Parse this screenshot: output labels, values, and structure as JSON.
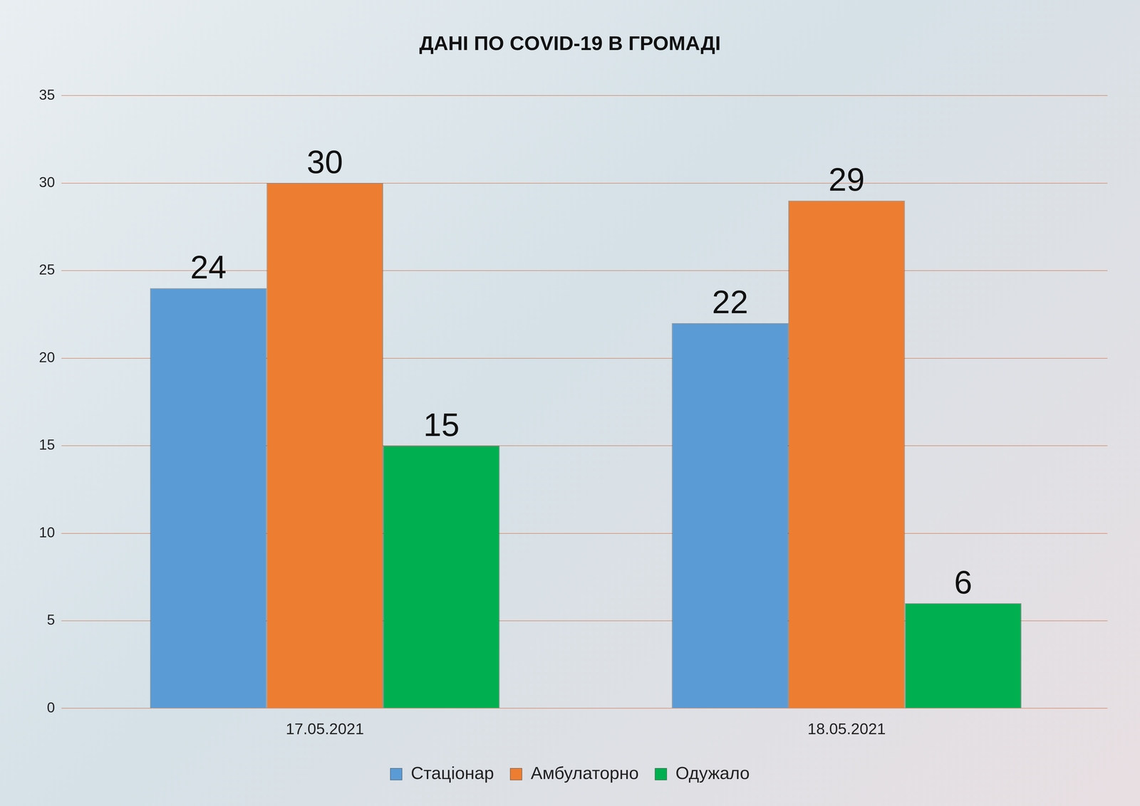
{
  "chart_data": {
    "type": "bar",
    "title": "ДАНІ ПО COVID-19 В ГРОМАДІ",
    "categories": [
      "17.05.2021",
      "18.05.2021"
    ],
    "series": [
      {
        "name": "Стаціонар",
        "color": "#5b9bd5",
        "values": [
          24,
          22
        ]
      },
      {
        "name": "Амбулаторно",
        "color": "#ed7d31",
        "values": [
          30,
          29
        ]
      },
      {
        "name": "Одужало",
        "color": "#00b050",
        "values": [
          15,
          6
        ]
      }
    ],
    "ylim": [
      0,
      35
    ],
    "yticks": [
      0,
      5,
      10,
      15,
      20,
      25,
      30,
      35
    ],
    "grid": true,
    "legend": "bottom",
    "data_labels": true
  }
}
